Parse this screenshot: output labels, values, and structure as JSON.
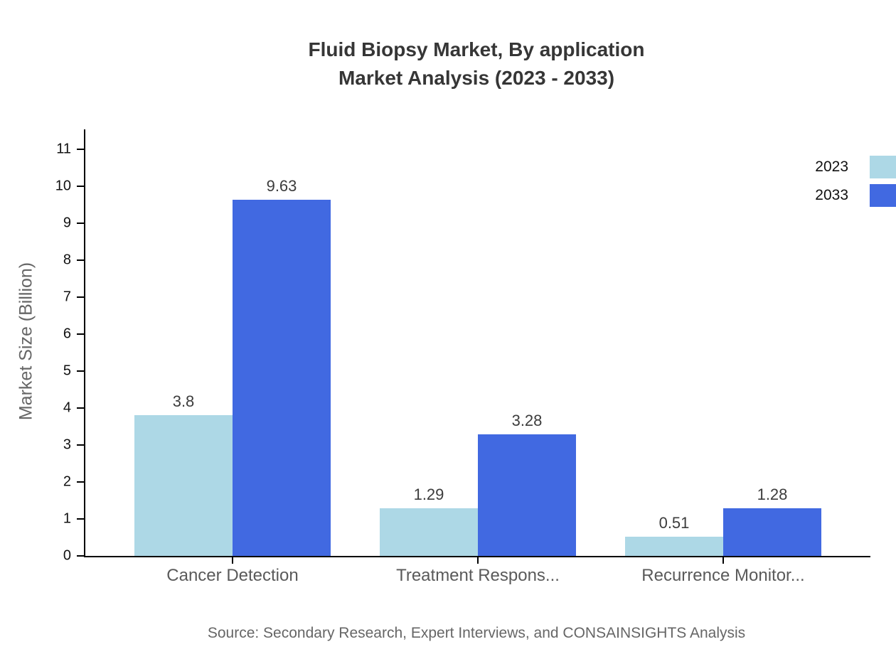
{
  "title": {
    "line1": "Fluid Biopsy Market, By application",
    "line2": "Market Analysis (2023 - 2033)"
  },
  "chart_data": {
    "type": "bar",
    "categories": [
      "Cancer Detection",
      "Treatment Respons...",
      "Recurrence Monitor..."
    ],
    "series": [
      {
        "name": "2023",
        "color": "#ADD8E6",
        "values": [
          3.8,
          1.29,
          0.51
        ],
        "labels": [
          "3.8",
          "1.29",
          "0.51"
        ]
      },
      {
        "name": "2033",
        "color": "#4169E1",
        "values": [
          9.63,
          3.28,
          1.28
        ],
        "labels": [
          "9.63",
          "3.28",
          "1.28"
        ]
      }
    ],
    "xlabel": "",
    "ylabel": "Market Size (Billion)",
    "ylim": [
      0,
      11
    ],
    "ytick_step": 1,
    "yticks": [
      0,
      1,
      2,
      3,
      4,
      5,
      6,
      7,
      8,
      9,
      10,
      11
    ],
    "grid": false,
    "legend_position": "top-right"
  },
  "source": "Source: Secondary Research, Expert Interviews, and CONSAINSIGHTS Analysis",
  "colors": {
    "series_2023": "#ADD8E6",
    "series_2033": "#4169E1",
    "axis": "#000000",
    "title_text": "#363636",
    "muted_text": "#666666"
  }
}
